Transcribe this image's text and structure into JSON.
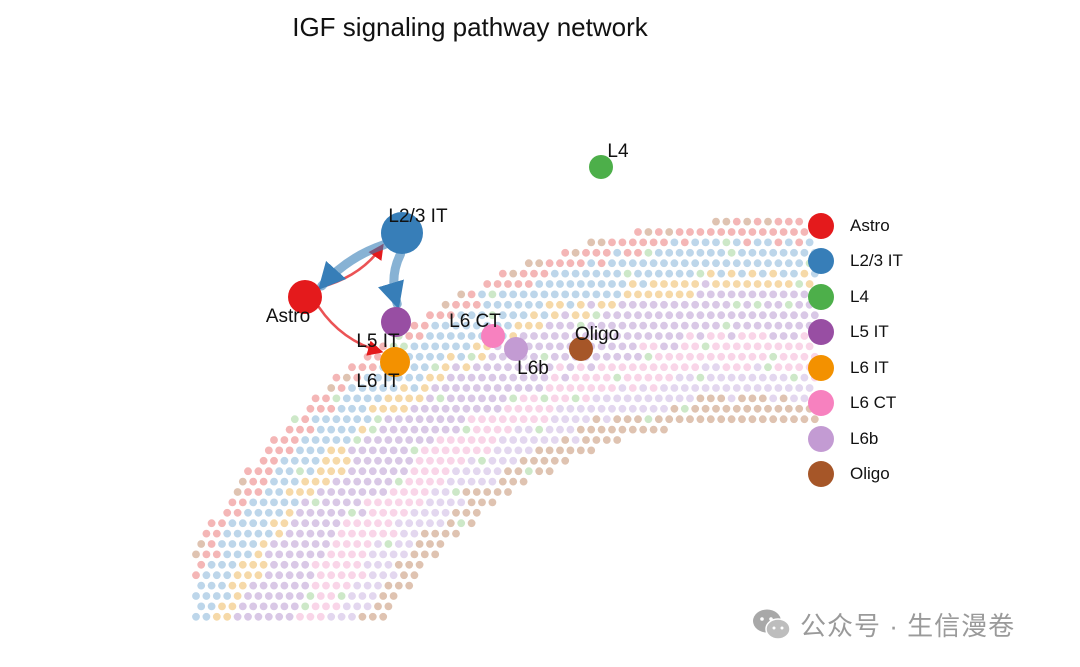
{
  "title": "IGF signaling pathway network",
  "watermark": {
    "text": "公众号 · 生信漫卷",
    "icon": "wechat-icon"
  },
  "cell_types": [
    {
      "name": "Astro",
      "color": "#E41A1C"
    },
    {
      "name": "L2/3 IT",
      "color": "#377EB8"
    },
    {
      "name": "L4",
      "color": "#4DAF4A"
    },
    {
      "name": "L5 IT",
      "color": "#984EA3"
    },
    {
      "name": "L6 IT",
      "color": "#F39100"
    },
    {
      "name": "L6 CT",
      "color": "#F781BF"
    },
    {
      "name": "L6b",
      "color": "#C39BD3"
    },
    {
      "name": "Oligo",
      "color": "#A65628"
    }
  ],
  "edges": [
    {
      "from": "Astro",
      "to": "L2/3 IT",
      "color": "#E41A1C",
      "weight": "thin"
    },
    {
      "from": "Astro",
      "to": "L6 IT",
      "color": "#E41A1C",
      "weight": "thin"
    },
    {
      "from": "L2/3 IT",
      "to": "Astro",
      "color": "#377EB8",
      "weight": "thick"
    },
    {
      "from": "L2/3 IT",
      "to": "L5 IT",
      "color": "#377EB8",
      "weight": "thick"
    }
  ]
}
